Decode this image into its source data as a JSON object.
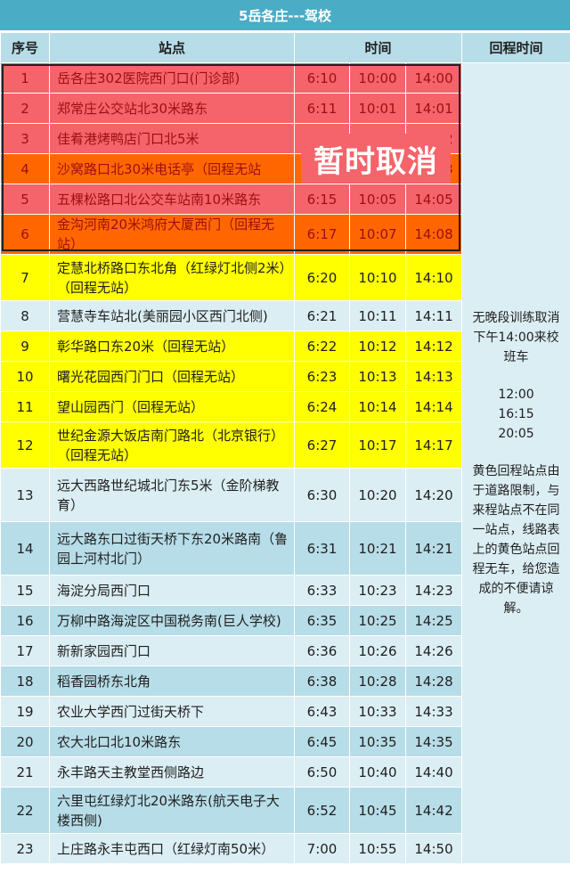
{
  "title": "5岳各庄---驾校",
  "headers": {
    "seq": "序号",
    "station": "站点",
    "time": "时间",
    "return": "回程时间"
  },
  "rows": [
    {
      "no": "1",
      "station": "岳各庄302医院西门口(门诊部)",
      "t1": "6:10",
      "t2": "10:00",
      "t3": "14:00",
      "style": "red"
    },
    {
      "no": "2",
      "station": "郑常庄公交站北30米路东",
      "t1": "6:11",
      "t2": "10:01",
      "t3": "14:01",
      "style": "red"
    },
    {
      "no": "3",
      "station": "佳肴港烤鸭店门口北5米",
      "t1": "6:11",
      "t2": "10:02",
      "t3": "14:02",
      "style": "red"
    },
    {
      "no": "4",
      "station": "沙窝路口北30米电话亭（回程无站",
      "t1": "6:13",
      "t2": "10:03",
      "t3": "14:03",
      "style": "orange"
    },
    {
      "no": "5",
      "station": "五棵松路口北公交车站南10米路东",
      "t1": "6:15",
      "t2": "10:05",
      "t3": "14:05",
      "style": "red"
    },
    {
      "no": "6",
      "station": "金沟河南20米鸿府大厦西门（回程无站）",
      "t1": "6:17",
      "t2": "10:07",
      "t3": "14:08",
      "style": "orange"
    },
    {
      "no": "7",
      "station": "定慧北桥路口东北角（红绿灯北侧2米）（回程无站）",
      "t1": "6:20",
      "t2": "10:10",
      "t3": "14:10",
      "style": "yellow"
    },
    {
      "no": "8",
      "station": "营慧寺车站北(美丽园小区西门北侧)",
      "t1": "6:21",
      "t2": "10:11",
      "t3": "14:11",
      "style": "light"
    },
    {
      "no": "9",
      "station": "彰华路口东20米（回程无站）",
      "t1": "6:22",
      "t2": "10:12",
      "t3": "14:12",
      "style": "yellow"
    },
    {
      "no": "10",
      "station": "曙光花园西门门口（回程无站）",
      "t1": "6:23",
      "t2": "10:13",
      "t3": "14:13",
      "style": "yellow"
    },
    {
      "no": "11",
      "station": "望山园西门（回程无站）",
      "t1": "6:24",
      "t2": "10:14",
      "t3": "14:14",
      "style": "yellow"
    },
    {
      "no": "12",
      "station": "世纪金源大饭店南门路北（北京银行）（回程无站）",
      "t1": "6:27",
      "t2": "10:17",
      "t3": "14:17",
      "style": "yellow"
    },
    {
      "no": "13",
      "station": "远大西路世纪城北门东5米（金阶梯教育）",
      "t1": "6:30",
      "t2": "10:20",
      "t3": "14:20",
      "style": "light"
    },
    {
      "no": "14",
      "station": "远大路东口过街天桥下东20米路南（鲁园上河村北门）",
      "t1": "6:31",
      "t2": "10:21",
      "t3": "14:21",
      "style": "blue"
    },
    {
      "no": "15",
      "station": "海淀分局西门口",
      "t1": "6:33",
      "t2": "10:23",
      "t3": "14:23",
      "style": "light"
    },
    {
      "no": "16",
      "station": "万柳中路海淀区中国税务南(巨人学校)",
      "t1": "6:35",
      "t2": "10:25",
      "t3": "14:25",
      "style": "blue"
    },
    {
      "no": "17",
      "station": "新新家园西门口",
      "t1": "6:36",
      "t2": "10:26",
      "t3": "14:26",
      "style": "light"
    },
    {
      "no": "18",
      "station": "稻香园桥东北角",
      "t1": "6:38",
      "t2": "10:28",
      "t3": "14:28",
      "style": "blue"
    },
    {
      "no": "19",
      "station": "农业大学西门过街天桥下",
      "t1": "6:43",
      "t2": "10:33",
      "t3": "14:33",
      "style": "light"
    },
    {
      "no": "20",
      "station": "农大北口北10米路东",
      "t1": "6:45",
      "t2": "10:35",
      "t3": "14:35",
      "style": "blue"
    },
    {
      "no": "21",
      "station": "永丰路天主教堂西侧路边",
      "t1": "6:50",
      "t2": "10:40",
      "t3": "14:40",
      "style": "light"
    },
    {
      "no": "22",
      "station": "六里屯红绿灯北20米路东(航天电子大楼西侧)",
      "t1": "6:52",
      "t2": "10:45",
      "t3": "14:42",
      "style": "blue"
    },
    {
      "no": "23",
      "station": "上庄路永丰屯西口（红绿灯南50米）",
      "t1": "7:00",
      "t2": "10:55",
      "t3": "14:50",
      "style": "light"
    }
  ],
  "return_info": {
    "line1": "无晚段训练取消下午14:00来校班车",
    "times": [
      "12:00",
      "16:15",
      "20:05"
    ],
    "note": "黄色回程站点由于道路限制，与来程站点不在同一站点，线路表上的黄色站点回程无车，给您造成的不便请谅解。"
  },
  "cancel_label": "暂时取消"
}
